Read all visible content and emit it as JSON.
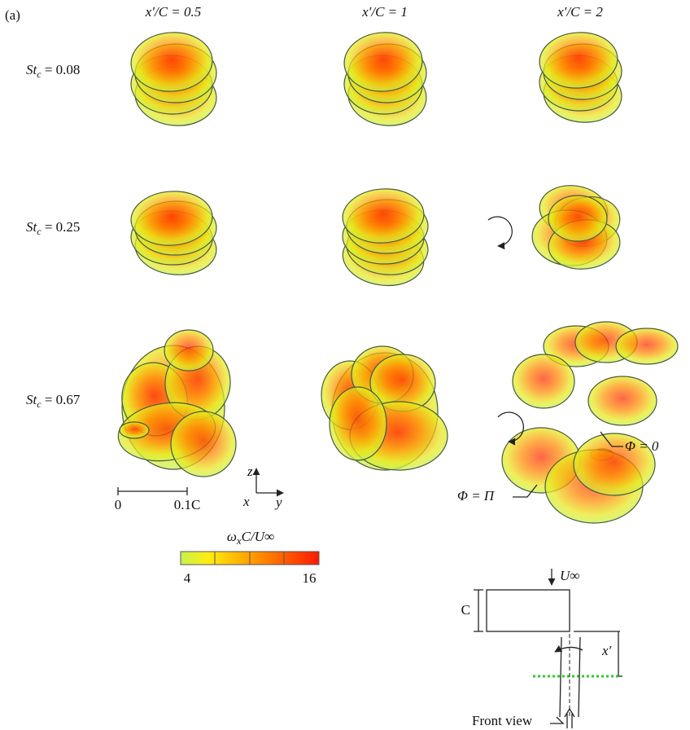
{
  "figure": {
    "panel": "(a)",
    "columns": [
      "x′/C = 0.5",
      "x′/C = 1",
      "x′/C = 2"
    ],
    "rows": [
      {
        "symbol": "St",
        "subscript": "c",
        "value": " = 0.08"
      },
      {
        "symbol": "St",
        "subscript": "c",
        "value": " = 0.25"
      },
      {
        "symbol": "St",
        "subscript": "c",
        "value": " = 0.67"
      }
    ],
    "scale_bar": {
      "start": "0",
      "end": "0.1C"
    },
    "axes": {
      "z": "z",
      "x": "x",
      "y": "y"
    },
    "annotations": [
      "Φ = 0",
      "Φ = Π"
    ],
    "colorbar": {
      "symbol": "ω",
      "subscript": "x",
      "rest": "C/U∞",
      "min": "4",
      "max": "16"
    },
    "schematic": {
      "velocity": "U∞",
      "chord": "C",
      "distance": "x′",
      "view": "Front view"
    }
  }
}
